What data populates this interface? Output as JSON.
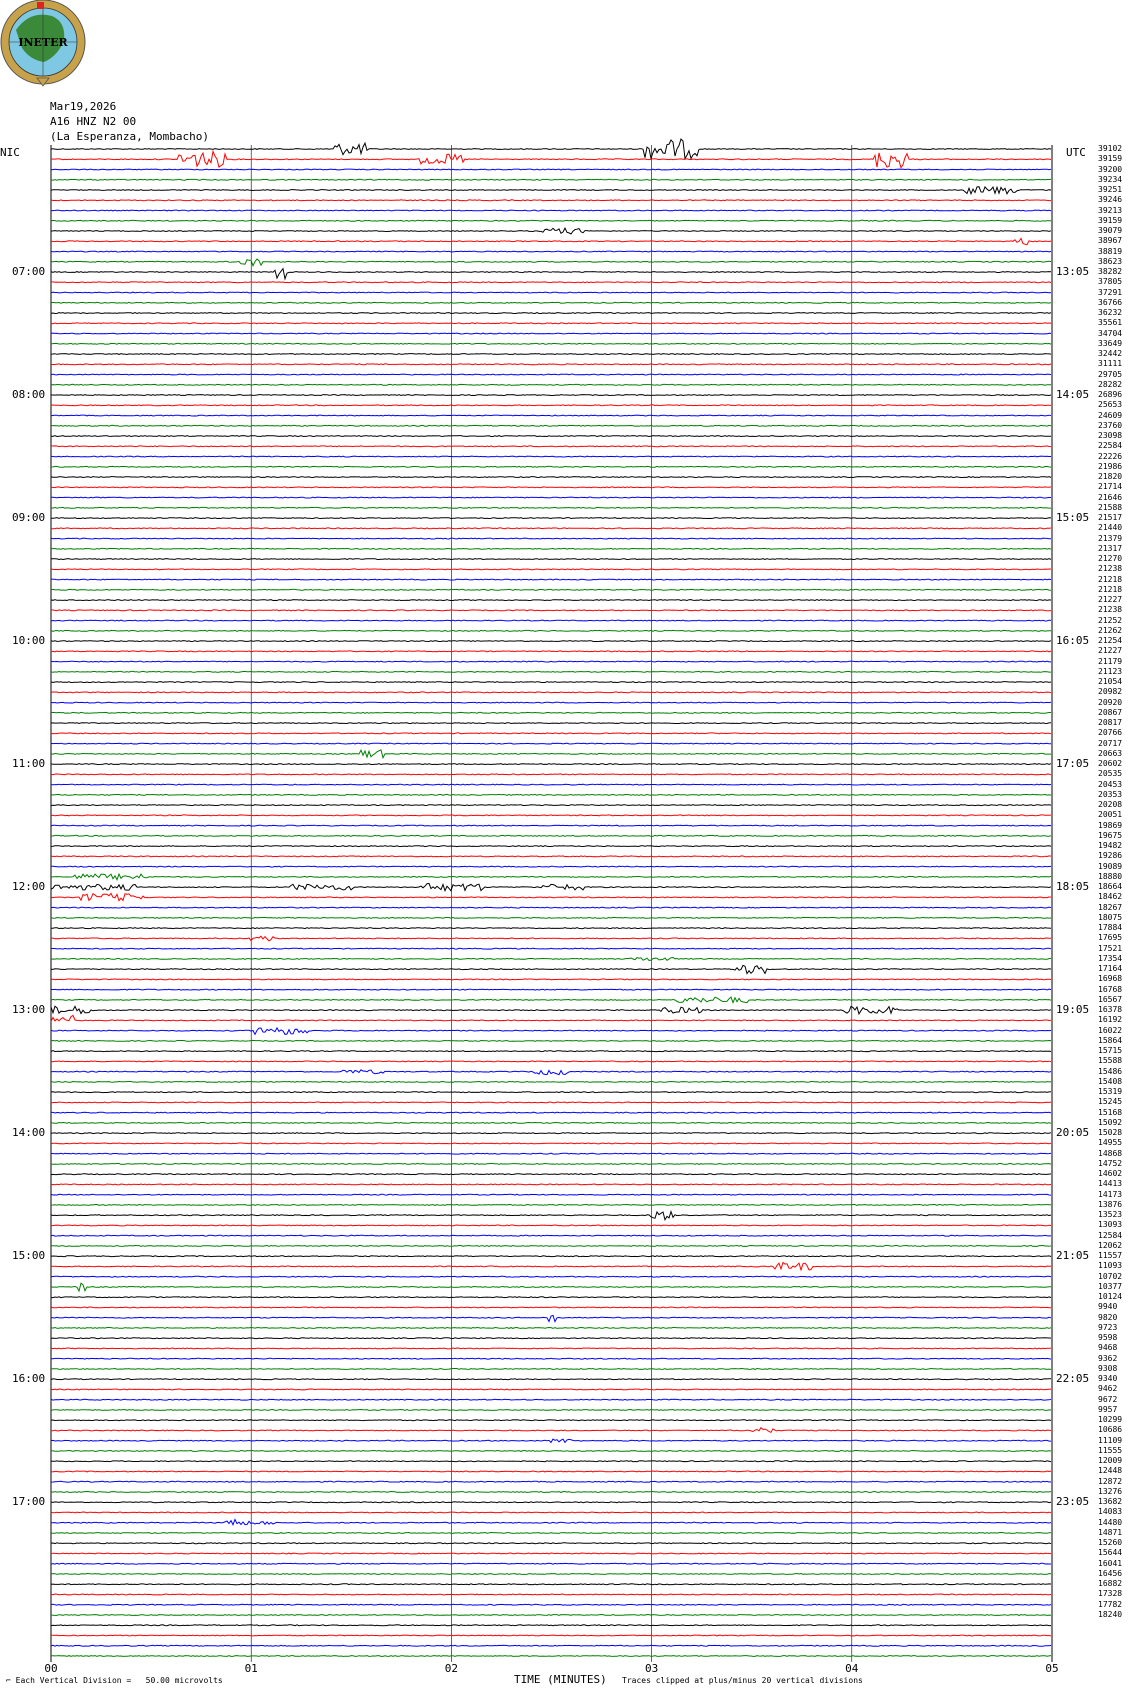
{
  "logo": {
    "text": "INETER",
    "colors": {
      "ring": "#c8a24a",
      "globe": "#7ec8e3",
      "land": "#3a8a3a",
      "border": "#555555"
    }
  },
  "header": {
    "date": "Mar19,2026",
    "station": "A16 HNZ N2 00",
    "location": "(La Esperanza, Mombacho)"
  },
  "labels": {
    "left_tz": "NIC",
    "right_tz": "UTC"
  },
  "chart_data": {
    "type": "line",
    "title": "",
    "xlabel": "TIME (MINUTES)",
    "ylabel": "",
    "x_ticks": [
      "00",
      "01",
      "02",
      "03",
      "04",
      "05"
    ],
    "xlim": [
      0,
      5
    ],
    "trace_count": 148,
    "trace_colors": [
      "#000000",
      "#ff0000",
      "#0000ff",
      "#008000"
    ],
    "left_time_labels": [
      "07:00",
      "08:00",
      "09:00",
      "10:00",
      "11:00",
      "12:00",
      "13:00",
      "14:00",
      "15:00",
      "16:00",
      "17:00"
    ],
    "right_time_labels": [
      "13:05",
      "14:05",
      "15:05",
      "16:05",
      "17:05",
      "18:05",
      "19:05",
      "20:05",
      "21:05",
      "22:05",
      "23:05"
    ],
    "right_values": [
      "39102",
      "39159",
      "39200",
      "39234",
      "39251",
      "39246",
      "39213",
      "39159",
      "39079",
      "38967",
      "38819",
      "38623",
      "38282",
      "37805",
      "37291",
      "36766",
      "36232",
      "35561",
      "34704",
      "33649",
      "32442",
      "31111",
      "29705",
      "28282",
      "26896",
      "25653",
      "24609",
      "23760",
      "23098",
      "22584",
      "22226",
      "21986",
      "21820",
      "21714",
      "21646",
      "21588",
      "21517",
      "21440",
      "21379",
      "21317",
      "21270",
      "21238",
      "21218",
      "21218",
      "21227",
      "21238",
      "21252",
      "21262",
      "21254",
      "21227",
      "21179",
      "21123",
      "21054",
      "20982",
      "20920",
      "20867",
      "20817",
      "20766",
      "20717",
      "20663",
      "20602",
      "20535",
      "20453",
      "20353",
      "20208",
      "20051",
      "19869",
      "19675",
      "19482",
      "19286",
      "19089",
      "18880",
      "18664",
      "18462",
      "18267",
      "18075",
      "17884",
      "17695",
      "17521",
      "17354",
      "17164",
      "16968",
      "16768",
      "16567",
      "16378",
      "16192",
      "16022",
      "15864",
      "15715",
      "15588",
      "15486",
      "15408",
      "15319",
      "15245",
      "15168",
      "15092",
      "15028",
      "14955",
      "14868",
      "14752",
      "14602",
      "14413",
      "14173",
      "13876",
      "13523",
      "13093",
      "12584",
      "12062",
      "11557",
      "11093",
      "10702",
      "10377",
      "10124",
      "9940",
      "9820",
      "9723",
      "9598",
      "9468",
      "9362",
      "9308",
      "9340",
      "9462",
      "9672",
      "9957",
      "10299",
      "10686",
      "11109",
      "11555",
      "12009",
      "12448",
      "12872",
      "13276",
      "13682",
      "14083",
      "14480",
      "14871",
      "15260",
      "15644",
      "16041",
      "16456",
      "16882",
      "17328",
      "17782",
      "18240"
    ],
    "events": [
      [
        0,
        3.1,
        0.25,
        10
      ],
      [
        0,
        1.5,
        0.15,
        6
      ],
      [
        1,
        0.75,
        0.22,
        8
      ],
      [
        1,
        4.2,
        0.15,
        9
      ],
      [
        1,
        1.95,
        0.2,
        5
      ],
      [
        4,
        4.7,
        0.25,
        4
      ],
      [
        8,
        2.55,
        0.2,
        3
      ],
      [
        9,
        4.85,
        0.05,
        5
      ],
      [
        11,
        1.0,
        0.1,
        4
      ],
      [
        12,
        1.15,
        0.05,
        7
      ],
      [
        59,
        1.6,
        0.1,
        4
      ],
      [
        71,
        0.3,
        0.35,
        3
      ],
      [
        72,
        0.2,
        0.45,
        3
      ],
      [
        72,
        1.35,
        0.3,
        3
      ],
      [
        72,
        2.0,
        0.3,
        4
      ],
      [
        72,
        2.55,
        0.2,
        3
      ],
      [
        73,
        0.3,
        0.3,
        4
      ],
      [
        77,
        1.05,
        0.1,
        3
      ],
      [
        79,
        3.0,
        0.2,
        2
      ],
      [
        80,
        3.5,
        0.15,
        5
      ],
      [
        83,
        3.3,
        0.35,
        3
      ],
      [
        84,
        0.1,
        0.2,
        4
      ],
      [
        84,
        3.15,
        0.2,
        3
      ],
      [
        84,
        4.1,
        0.25,
        4
      ],
      [
        85,
        0.05,
        0.1,
        5
      ],
      [
        86,
        1.15,
        0.25,
        4
      ],
      [
        90,
        1.55,
        0.2,
        2
      ],
      [
        90,
        2.5,
        0.15,
        3
      ],
      [
        104,
        3.05,
        0.1,
        5
      ],
      [
        109,
        3.7,
        0.2,
        4
      ],
      [
        111,
        0.15,
        0.02,
        5
      ],
      [
        114,
        2.5,
        0.02,
        6
      ],
      [
        134,
        0.9,
        0.05,
        5
      ],
      [
        134,
        1.0,
        0.2,
        2
      ],
      [
        125,
        3.55,
        0.1,
        3
      ],
      [
        126,
        2.55,
        0.1,
        2
      ]
    ]
  },
  "footer": {
    "scale_note": "Each Vertical Division =   50.00 microvolts",
    "clip_note": "Traces clipped at plus/minus 20 vertical divisions"
  }
}
